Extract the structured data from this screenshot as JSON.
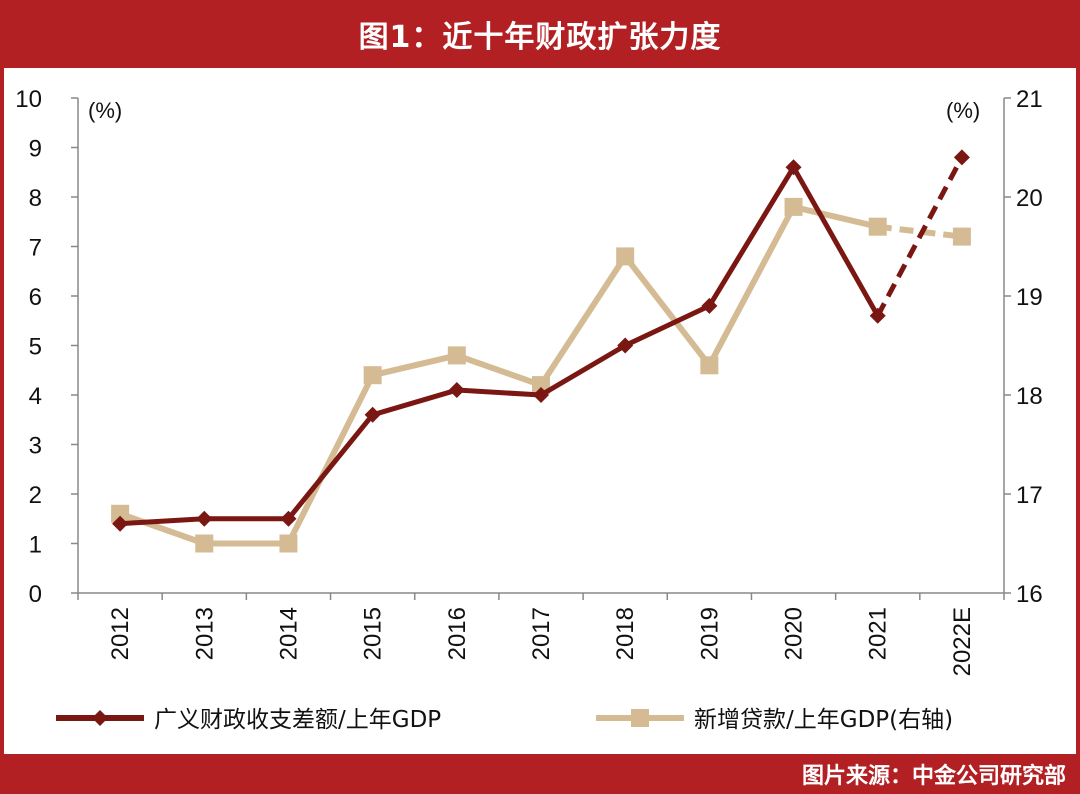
{
  "title": "图1：近十年财政扩张力度",
  "source": "图片来源：中金公司研究部",
  "colors": {
    "frame": "#b22024",
    "series1": "#7a1712",
    "series2": "#d4bb94"
  },
  "chart_data": {
    "type": "line",
    "categories": [
      "2012",
      "2013",
      "2014",
      "2015",
      "2016",
      "2017",
      "2018",
      "2019",
      "2020",
      "2021",
      "2022E"
    ],
    "left_axis": {
      "unit": "(%)",
      "range": [
        0,
        10
      ],
      "ticks": [
        "0",
        "1",
        "2",
        "3",
        "4",
        "5",
        "6",
        "7",
        "8",
        "9",
        "10"
      ]
    },
    "right_axis": {
      "unit": "(%)",
      "range": [
        16,
        21
      ],
      "ticks": [
        "16",
        "17",
        "18",
        "19",
        "20",
        "21"
      ]
    },
    "grid": false,
    "legend_position": "bottom",
    "series": [
      {
        "name": "广义财政收支差额/上年GDP",
        "axis": "left",
        "marker": "diamond",
        "values": [
          1.4,
          1.5,
          1.5,
          3.6,
          4.1,
          4.0,
          5.0,
          5.8,
          8.6,
          5.6,
          8.8
        ],
        "forecast_from_index": 9
      },
      {
        "name": "新增贷款/上年GDP(右轴)",
        "axis": "right",
        "marker": "square",
        "values": [
          16.8,
          16.5,
          16.5,
          18.2,
          18.4,
          18.1,
          19.4,
          18.3,
          19.9,
          19.7,
          19.6
        ],
        "forecast_from_index": 9
      }
    ]
  }
}
